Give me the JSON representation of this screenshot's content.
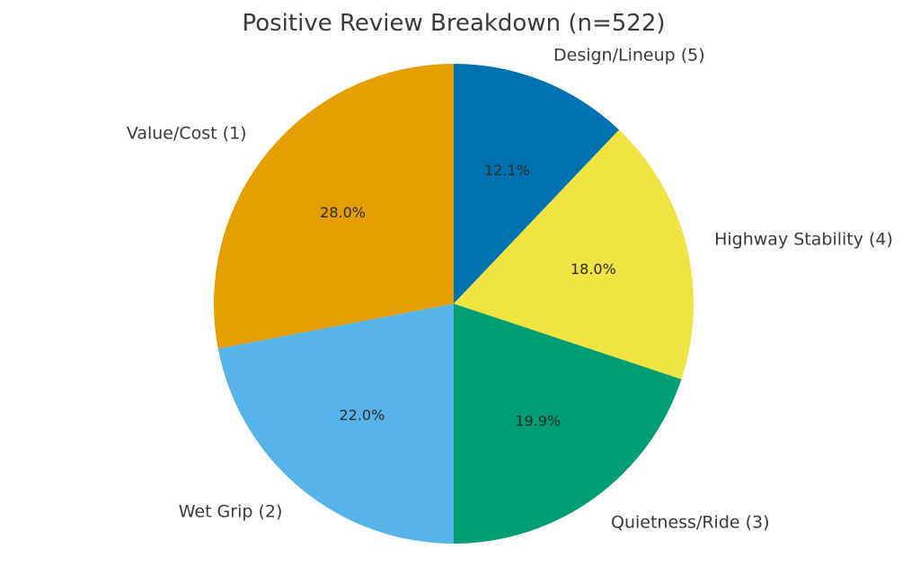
{
  "chart_data": {
    "type": "pie",
    "title": "Positive Review Breakdown (n=522)",
    "slices": [
      {
        "label": "Design/Lineup (5)",
        "value": 12.1,
        "pct_label": "12.1%",
        "color": "#0072B2"
      },
      {
        "label": "Highway Stability (4)",
        "value": 18.0,
        "pct_label": "18.0%",
        "color": "#F0E442"
      },
      {
        "label": "Quietness/Ride (3)",
        "value": 19.9,
        "pct_label": "19.9%",
        "color": "#009E73"
      },
      {
        "label": "Wet Grip (2)",
        "value": 22.0,
        "pct_label": "22.0%",
        "color": "#56B4E9"
      },
      {
        "label": "Value/Cost (1)",
        "value": 28.0,
        "pct_label": "28.0%",
        "color": "#E69F00"
      }
    ],
    "start": "top",
    "direction": "clockwise"
  }
}
